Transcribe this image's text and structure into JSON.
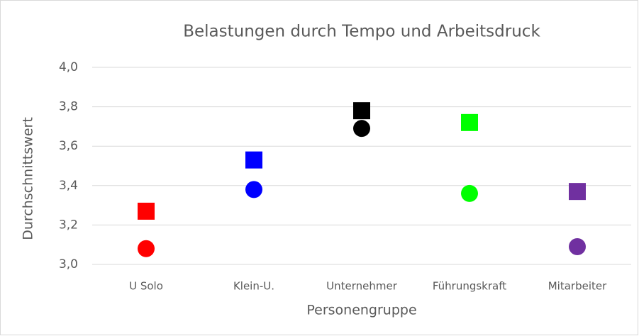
{
  "chart_data": {
    "type": "scatter",
    "title": "Belastungen durch Tempo und Arbeitsdruck",
    "x_label": "Personengruppe",
    "y_label": "Durchschnittswert",
    "categories": [
      "U Solo",
      "Klein-U.",
      "Unternehmer",
      "Führungskraft",
      "Mitarbeiter"
    ],
    "colors": [
      "#ff0000",
      "#0000ff",
      "#000000",
      "#00ff00",
      "#7030a0"
    ],
    "series": [
      {
        "marker": "square",
        "values": [
          3.27,
          3.53,
          3.78,
          3.72,
          3.37
        ]
      },
      {
        "marker": "circle",
        "values": [
          3.08,
          3.38,
          3.69,
          3.36,
          3.09
        ]
      }
    ],
    "ylim": [
      3.0,
      4.0
    ],
    "yticks": [
      {
        "value": 3.0,
        "label": "3,0"
      },
      {
        "value": 3.2,
        "label": "3,2"
      },
      {
        "value": 3.4,
        "label": "3,4"
      },
      {
        "value": 3.6,
        "label": "3,6"
      },
      {
        "value": 3.8,
        "label": "3,8"
      },
      {
        "value": 4.0,
        "label": "4,0"
      }
    ],
    "grid": true
  }
}
